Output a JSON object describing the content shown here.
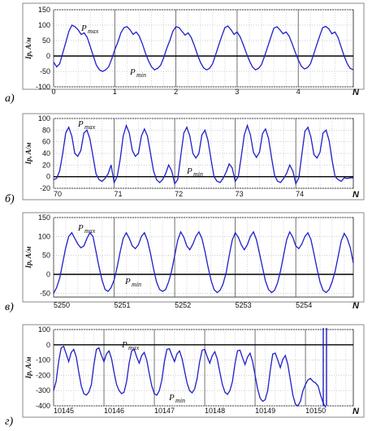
{
  "chart_data": [
    {
      "type": "line",
      "panel_label": "а)",
      "ylabel": "Ip, A/м",
      "xlabel": "N",
      "xlim": [
        0,
        4.9
      ],
      "ylim": [
        -100,
        150
      ],
      "xticks": [
        "0",
        "1",
        "2",
        "3",
        "4"
      ],
      "yticks": [
        "150",
        "100",
        "50",
        "0",
        "-50",
        "-100"
      ],
      "annotations": {
        "max": "P",
        "max_sub": "max",
        "min": "P",
        "min_sub": "min"
      },
      "series": [
        {
          "x": [
            0,
            0.05,
            0.1,
            0.15,
            0.2,
            0.25,
            0.3,
            0.35,
            0.4,
            0.45,
            0.5,
            0.55,
            0.6,
            0.65,
            0.7,
            0.75,
            0.8,
            0.85,
            0.9,
            0.95,
            1.0,
            1.05,
            1.1,
            1.15,
            1.2,
            1.25,
            1.3,
            1.35,
            1.4,
            1.45,
            1.5,
            1.55,
            1.6,
            1.65,
            1.7,
            1.75,
            1.8,
            1.85,
            1.9,
            1.95,
            2.0,
            2.05,
            2.1,
            2.15,
            2.2,
            2.25,
            2.3,
            2.35,
            2.4,
            2.45,
            2.5,
            2.55,
            2.6,
            2.65,
            2.7,
            2.75,
            2.8,
            2.85,
            2.9,
            2.95,
            3.0,
            3.05,
            3.1,
            3.15,
            3.2,
            3.25,
            3.3,
            3.35,
            3.4,
            3.45,
            3.5,
            3.55,
            3.6,
            3.65,
            3.7,
            3.75,
            3.8,
            3.85,
            3.9,
            3.95,
            4.0,
            4.05,
            4.1,
            4.15,
            4.2,
            4.25,
            4.3,
            4.35,
            4.4,
            4.45,
            4.5,
            4.55,
            4.6,
            4.65,
            4.7,
            4.75,
            4.8,
            4.85,
            4.9
          ],
          "y": [
            -20,
            -35,
            -25,
            10,
            45,
            80,
            100,
            95,
            85,
            70,
            75,
            60,
            30,
            0,
            -30,
            -45,
            -50,
            -45,
            -35,
            -10,
            20,
            45,
            75,
            92,
            95,
            85,
            70,
            78,
            65,
            40,
            10,
            -15,
            -35,
            -45,
            -40,
            -30,
            -5,
            25,
            50,
            80,
            95,
            92,
            80,
            68,
            75,
            60,
            35,
            5,
            -20,
            -38,
            -45,
            -40,
            -25,
            5,
            35,
            65,
            92,
            97,
            85,
            70,
            78,
            62,
            38,
            10,
            -15,
            -35,
            -45,
            -40,
            -28,
            0,
            30,
            60,
            90,
            95,
            85,
            72,
            78,
            65,
            40,
            12,
            -12,
            -33,
            -42,
            -38,
            -25,
            5,
            35,
            65,
            92,
            96,
            88,
            72,
            78,
            60,
            30,
            0,
            -25,
            -40,
            -45
          ]
        }
      ]
    },
    {
      "type": "line",
      "panel_label": "б)",
      "ylabel": "Ip, A/м",
      "xlabel": "N",
      "xlim": [
        70,
        74.95
      ],
      "ylim": [
        -20,
        100
      ],
      "xticks": [
        "70",
        "71",
        "72",
        "73",
        "74"
      ],
      "yticks": [
        "100",
        "80",
        "60",
        "40",
        "20",
        "0",
        "-20"
      ],
      "annotations": {
        "max": "P",
        "max_sub": "max",
        "min": "P",
        "min_sub": "min"
      },
      "series": [
        {
          "x": [
            70.0,
            70.05,
            70.1,
            70.15,
            70.2,
            70.25,
            70.3,
            70.35,
            70.4,
            70.45,
            70.5,
            70.55,
            70.6,
            70.65,
            70.7,
            70.75,
            70.8,
            70.85,
            70.9,
            70.95,
            71.0,
            71.05,
            71.1,
            71.15,
            71.2,
            71.25,
            71.3,
            71.35,
            71.4,
            71.45,
            71.5,
            71.55,
            71.6,
            71.65,
            71.7,
            71.75,
            71.8,
            71.85,
            71.9,
            71.95,
            72.0,
            72.05,
            72.1,
            72.15,
            72.2,
            72.25,
            72.3,
            72.35,
            72.4,
            72.45,
            72.5,
            72.55,
            72.6,
            72.65,
            72.7,
            72.75,
            72.8,
            72.85,
            72.9,
            72.95,
            73.0,
            73.05,
            73.1,
            73.15,
            73.2,
            73.25,
            73.3,
            73.35,
            73.4,
            73.45,
            73.5,
            73.55,
            73.6,
            73.65,
            73.7,
            73.75,
            73.8,
            73.85,
            73.9,
            73.95,
            74.0,
            74.05,
            74.1,
            74.15,
            74.2,
            74.25,
            74.3,
            74.35,
            74.4,
            74.45,
            74.5,
            74.55,
            74.6,
            74.65,
            74.7,
            74.75,
            74.8,
            74.85,
            74.9,
            74.95
          ],
          "y": [
            -5,
            -3,
            10,
            40,
            75,
            85,
            70,
            40,
            35,
            45,
            75,
            80,
            65,
            35,
            5,
            -5,
            -8,
            -3,
            5,
            20,
            -10,
            0,
            30,
            70,
            88,
            75,
            45,
            35,
            40,
            70,
            82,
            70,
            40,
            10,
            -5,
            -10,
            -5,
            5,
            20,
            10,
            -12,
            -5,
            35,
            75,
            85,
            70,
            40,
            32,
            40,
            72,
            80,
            62,
            30,
            0,
            -8,
            -10,
            -3,
            8,
            22,
            15,
            -8,
            0,
            35,
            72,
            88,
            72,
            42,
            33,
            42,
            74,
            82,
            66,
            32,
            2,
            -8,
            -10,
            -3,
            6,
            20,
            10,
            -12,
            -2,
            38,
            78,
            85,
            68,
            38,
            32,
            42,
            75,
            80,
            62,
            28,
            0,
            -5,
            -8,
            -2,
            -3,
            -2,
            -2
          ]
        }
      ]
    },
    {
      "type": "line",
      "panel_label": "в)",
      "ylabel": "Ip, A/м",
      "xlabel": "N",
      "xlim": [
        5250,
        5254.95
      ],
      "ylim": [
        -60,
        150
      ],
      "xticks": [
        "5250",
        "5251",
        "5252",
        "5253",
        "5254"
      ],
      "yticks": [
        "150",
        "100",
        "50",
        "0",
        "-50"
      ],
      "annotations": {
        "max": "P",
        "max_sub": "max",
        "min": "P",
        "min_sub": "min"
      },
      "series": [
        {
          "x": [
            5250.0,
            5250.05,
            5250.1,
            5250.15,
            5250.2,
            5250.25,
            5250.3,
            5250.35,
            5250.4,
            5250.45,
            5250.5,
            5250.55,
            5250.6,
            5250.65,
            5250.7,
            5250.75,
            5250.8,
            5250.85,
            5250.9,
            5250.95,
            5251.0,
            5251.05,
            5251.1,
            5251.15,
            5251.2,
            5251.25,
            5251.3,
            5251.35,
            5251.4,
            5251.45,
            5251.5,
            5251.55,
            5251.6,
            5251.65,
            5251.7,
            5251.75,
            5251.8,
            5251.85,
            5251.9,
            5251.95,
            5252.0,
            5252.05,
            5252.1,
            5252.15,
            5252.2,
            5252.25,
            5252.3,
            5252.35,
            5252.4,
            5252.45,
            5252.5,
            5252.55,
            5252.6,
            5252.65,
            5252.7,
            5252.75,
            5252.8,
            5252.85,
            5252.9,
            5252.95,
            5253.0,
            5253.05,
            5253.1,
            5253.15,
            5253.2,
            5253.25,
            5253.3,
            5253.35,
            5253.4,
            5253.45,
            5253.5,
            5253.55,
            5253.6,
            5253.65,
            5253.7,
            5253.75,
            5253.8,
            5253.85,
            5253.9,
            5253.95,
            5254.0,
            5254.05,
            5254.1,
            5254.15,
            5254.2,
            5254.25,
            5254.3,
            5254.35,
            5254.4,
            5254.45,
            5254.5,
            5254.55,
            5254.6,
            5254.65,
            5254.7,
            5254.75,
            5254.8,
            5254.85,
            5254.9,
            5254.95
          ],
          "y": [
            -50,
            -35,
            -10,
            30,
            70,
            100,
            110,
            95,
            80,
            70,
            75,
            95,
            110,
            100,
            60,
            20,
            -15,
            -40,
            -45,
            -35,
            -15,
            20,
            60,
            95,
            110,
            95,
            75,
            68,
            78,
            100,
            110,
            90,
            55,
            15,
            -20,
            -40,
            -45,
            -40,
            -20,
            10,
            50,
            90,
            112,
            98,
            75,
            65,
            80,
            100,
            112,
            95,
            60,
            20,
            -15,
            -40,
            -48,
            -42,
            -25,
            5,
            50,
            90,
            110,
            98,
            78,
            65,
            78,
            100,
            112,
            92,
            55,
            18,
            -18,
            -40,
            -48,
            -42,
            -22,
            10,
            52,
            92,
            112,
            98,
            75,
            68,
            80,
            100,
            110,
            92,
            55,
            15,
            -20,
            -42,
            -48,
            -40,
            -20,
            8,
            48,
            88,
            108,
            95,
            70,
            30
          ]
        }
      ]
    },
    {
      "type": "line",
      "panel_label": "г)",
      "ylabel": "Ip, A/м",
      "xlabel": "N",
      "xlim": [
        10145,
        10150.95
      ],
      "ylim": [
        -400,
        100
      ],
      "xticks": [
        "10145",
        "10146",
        "10147",
        "10148",
        "10149",
        "10150"
      ],
      "yticks": [
        "100",
        "0",
        "-100",
        "-200",
        "-300",
        "-400"
      ],
      "annotations": {
        "max": "P",
        "max_sub": "max",
        "min": "P",
        "min_sub": "min"
      },
      "series": [
        {
          "x": [
            10145.0,
            10145.05,
            10145.1,
            10145.15,
            10145.2,
            10145.25,
            10145.3,
            10145.35,
            10145.4,
            10145.45,
            10145.5,
            10145.55,
            10145.6,
            10145.65,
            10145.7,
            10145.75,
            10145.8,
            10145.85,
            10145.9,
            10145.95,
            10146.0,
            10146.05,
            10146.1,
            10146.15,
            10146.2,
            10146.25,
            10146.3,
            10146.35,
            10146.4,
            10146.45,
            10146.5,
            10146.55,
            10146.6,
            10146.65,
            10146.7,
            10146.75,
            10146.8,
            10146.85,
            10146.9,
            10146.95,
            10147.0,
            10147.05,
            10147.1,
            10147.15,
            10147.2,
            10147.25,
            10147.3,
            10147.35,
            10147.4,
            10147.45,
            10147.5,
            10147.55,
            10147.6,
            10147.65,
            10147.7,
            10147.75,
            10147.8,
            10147.85,
            10147.9,
            10147.95,
            10148.0,
            10148.05,
            10148.1,
            10148.15,
            10148.2,
            10148.25,
            10148.3,
            10148.35,
            10148.4,
            10148.45,
            10148.5,
            10148.55,
            10148.6,
            10148.65,
            10148.7,
            10148.75,
            10148.8,
            10148.85,
            10148.9,
            10148.95,
            10149.0,
            10149.05,
            10149.1,
            10149.15,
            10149.2,
            10149.25,
            10149.3,
            10149.35,
            10149.4,
            10149.45,
            10149.5,
            10149.55,
            10149.6,
            10149.65,
            10149.7,
            10149.75,
            10149.8,
            10149.85,
            10149.9,
            10149.95,
            10150.0,
            10150.05,
            10150.1,
            10150.15,
            10150.2,
            10150.25,
            10150.3,
            10150.35,
            10150.4
          ],
          "y": [
            -300,
            -240,
            -110,
            -20,
            -10,
            -60,
            -110,
            -50,
            -30,
            -80,
            -180,
            -270,
            -320,
            -330,
            -310,
            -260,
            -130,
            -30,
            -20,
            -70,
            -110,
            -60,
            -40,
            -90,
            -180,
            -260,
            -300,
            -320,
            -310,
            -240,
            -120,
            -40,
            -30,
            -80,
            -120,
            -70,
            -50,
            -100,
            -190,
            -270,
            -320,
            -330,
            -300,
            -230,
            -110,
            -30,
            -25,
            -70,
            -110,
            -60,
            -40,
            -90,
            -170,
            -250,
            -300,
            -315,
            -290,
            -220,
            -110,
            -35,
            -30,
            -80,
            -120,
            -70,
            -45,
            -95,
            -180,
            -260,
            -310,
            -325,
            -300,
            -240,
            -125,
            -40,
            -35,
            -85,
            -130,
            -80,
            -55,
            -110,
            -200,
            -290,
            -350,
            -370,
            -360,
            -300,
            -170,
            -60,
            -55,
            -100,
            -150,
            -95,
            -70,
            -130,
            -230,
            -330,
            -390,
            -400,
            -370,
            -300,
            -260,
            -230,
            -220,
            -240,
            -250,
            -270,
            -330,
            -380,
            -410
          ]
        }
      ]
    }
  ]
}
